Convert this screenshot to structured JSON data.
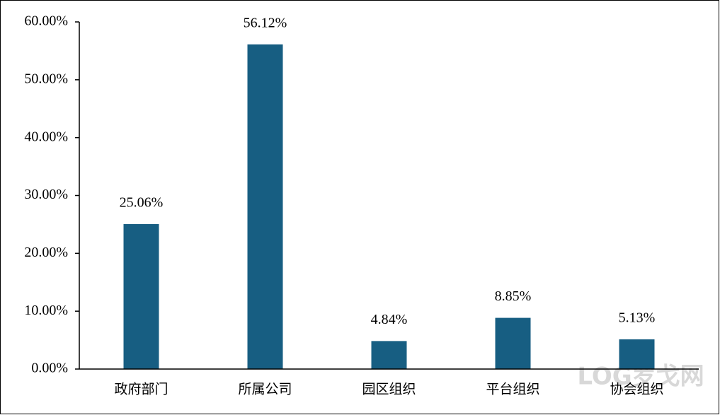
{
  "chart_data": {
    "type": "bar",
    "categories": [
      "政府部门",
      "所属公司",
      "园区组织",
      "平台组织",
      "协会组织"
    ],
    "values": [
      25.06,
      56.12,
      4.84,
      8.85,
      5.13
    ],
    "value_labels": [
      "25.06%",
      "56.12%",
      "4.84%",
      "8.85%",
      "5.13%"
    ],
    "color": "#175e82",
    "ylim": [
      0,
      60
    ],
    "yticks": [
      {
        "value": 0,
        "label": "0.00%"
      },
      {
        "value": 10,
        "label": "10.00%"
      },
      {
        "value": 20,
        "label": "20.00%"
      },
      {
        "value": 30,
        "label": "30.00%"
      },
      {
        "value": 40,
        "label": "40.00%"
      },
      {
        "value": 50,
        "label": "50.00%"
      },
      {
        "value": 60,
        "label": "60.00%"
      }
    ],
    "grid": false,
    "watermark": "LOG罗戈网"
  }
}
